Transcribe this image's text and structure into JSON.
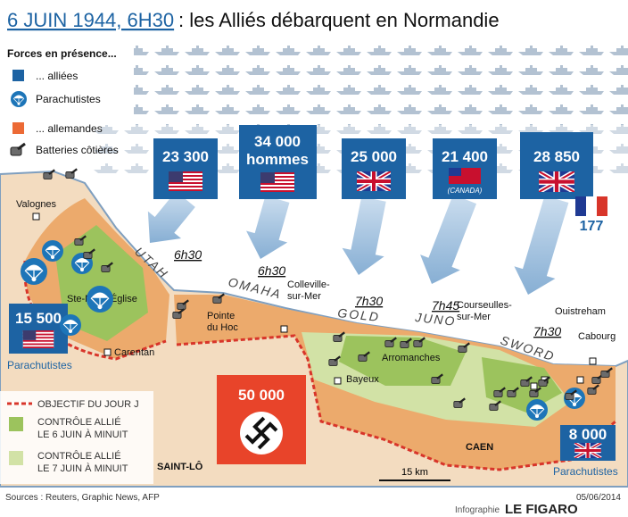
{
  "header": {
    "title_date": "6 JUIN 1944, 6H30",
    "title_rest": ": les Alliés débarquent en Normandie"
  },
  "legend": {
    "heading": "Forces en présence...",
    "allied": "... alliées",
    "paratroopers": "Parachutistes",
    "german": "... allemandes",
    "batteries": "Batteries côtières",
    "objective": "OBJECTIF DU JOUR J",
    "control_6": [
      "CONTRÔLE ALLIÉ",
      "LE 6 JUIN À MINUIT"
    ],
    "control_7": [
      "CONTRÔLE ALLIÉ",
      "LE 7 JUIN À MINUIT"
    ]
  },
  "forces": {
    "utah": "23 300",
    "omaha": [
      "34 000",
      "hommes"
    ],
    "gold": "25 000",
    "juno": "21 400",
    "juno_country": "(CANADA)",
    "sword": "28 850",
    "france": "177",
    "para_west": "15 500",
    "para_west_label": "Parachutistes",
    "para_east": "8 000",
    "para_east_label": "Parachutistes",
    "german": "50 000"
  },
  "beaches": [
    {
      "name": "UTAH",
      "time": "6h30"
    },
    {
      "name": "OMAHA",
      "time": "6h30"
    },
    {
      "name": "GOLD",
      "time": "7h30"
    },
    {
      "name": "JUNO",
      "time": "7h45"
    },
    {
      "name": "SWORD",
      "time": "7h30"
    }
  ],
  "places": [
    {
      "lines": [
        "Valognes"
      ]
    },
    {
      "lines": [
        "Ste-Mère-Église"
      ]
    },
    {
      "lines": [
        "Carentan"
      ]
    },
    {
      "lines": [
        "Pointe",
        "du Hoc"
      ]
    },
    {
      "lines": [
        "Colleville-",
        "sur-Mer"
      ]
    },
    {
      "lines": [
        "Bayeux"
      ]
    },
    {
      "lines": [
        "Arromanches"
      ]
    },
    {
      "lines": [
        "Courseulles-",
        "sur-Mer"
      ]
    },
    {
      "lines": [
        "Ouistreham"
      ]
    },
    {
      "lines": [
        "Cabourg"
      ]
    },
    {
      "lines": [
        "CAEN"
      ]
    },
    {
      "lines": [
        "SAINT-LÔ"
      ]
    }
  ],
  "scale": "15 km",
  "footer": {
    "sources": "Sources : Reuters, Graphic News, AFP",
    "credit": "Infographie",
    "brand": "LE FIGARO",
    "date": "05/06/2014"
  }
}
